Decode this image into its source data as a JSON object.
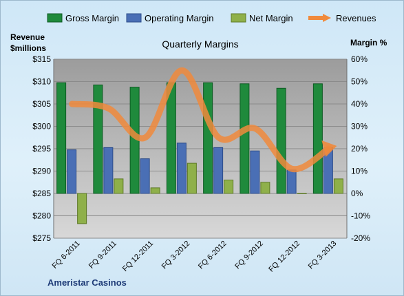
{
  "chart_data": {
    "type": "bar",
    "title": "Quarterly Margins",
    "company": "Ameristar Casinos",
    "left_axis_label_line1": "Revenue",
    "left_axis_label_line2": "$millions",
    "right_axis_label": "Margin %",
    "categories": [
      "FQ 6-2011",
      "FQ 9-2011",
      "FQ 12-2011",
      "FQ 3-2012",
      "FQ 6-2012",
      "FQ 9-2012",
      "FQ 12-2012",
      "FQ 3-2013"
    ],
    "left_ylim": [
      275,
      315
    ],
    "left_ticks": [
      "$275",
      "$280",
      "$285",
      "$290",
      "$295",
      "$300",
      "$305",
      "$310",
      "$315"
    ],
    "right_ylim": [
      -20,
      60
    ],
    "right_ticks": [
      "-20%",
      "-10%",
      "0%",
      "10%",
      "20%",
      "30%",
      "40%",
      "50%",
      "60%"
    ],
    "legend_position": "top",
    "grid": true,
    "series": [
      {
        "name": "Gross Margin",
        "axis": "right",
        "kind": "bar",
        "color": "#1f8a3c",
        "values": [
          49.5,
          48.5,
          47.5,
          49.5,
          49.5,
          49,
          47,
          49
        ]
      },
      {
        "name": "Operating Margin",
        "axis": "right",
        "kind": "bar",
        "color": "#4a6fb5",
        "values": [
          19.5,
          20.5,
          15.5,
          22.5,
          20.5,
          19,
          10.5,
          20.5
        ]
      },
      {
        "name": "Net Margin",
        "axis": "right",
        "kind": "bar",
        "color": "#8fb04a",
        "values": [
          -13.5,
          6.5,
          2.5,
          13.5,
          6,
          5,
          0,
          6.5
        ]
      },
      {
        "name": "Revenues",
        "axis": "left",
        "kind": "line",
        "color": "#f08a3c",
        "values": [
          305,
          304,
          297.5,
          312.5,
          297.5,
          299.5,
          290.5,
          295
        ]
      }
    ]
  }
}
